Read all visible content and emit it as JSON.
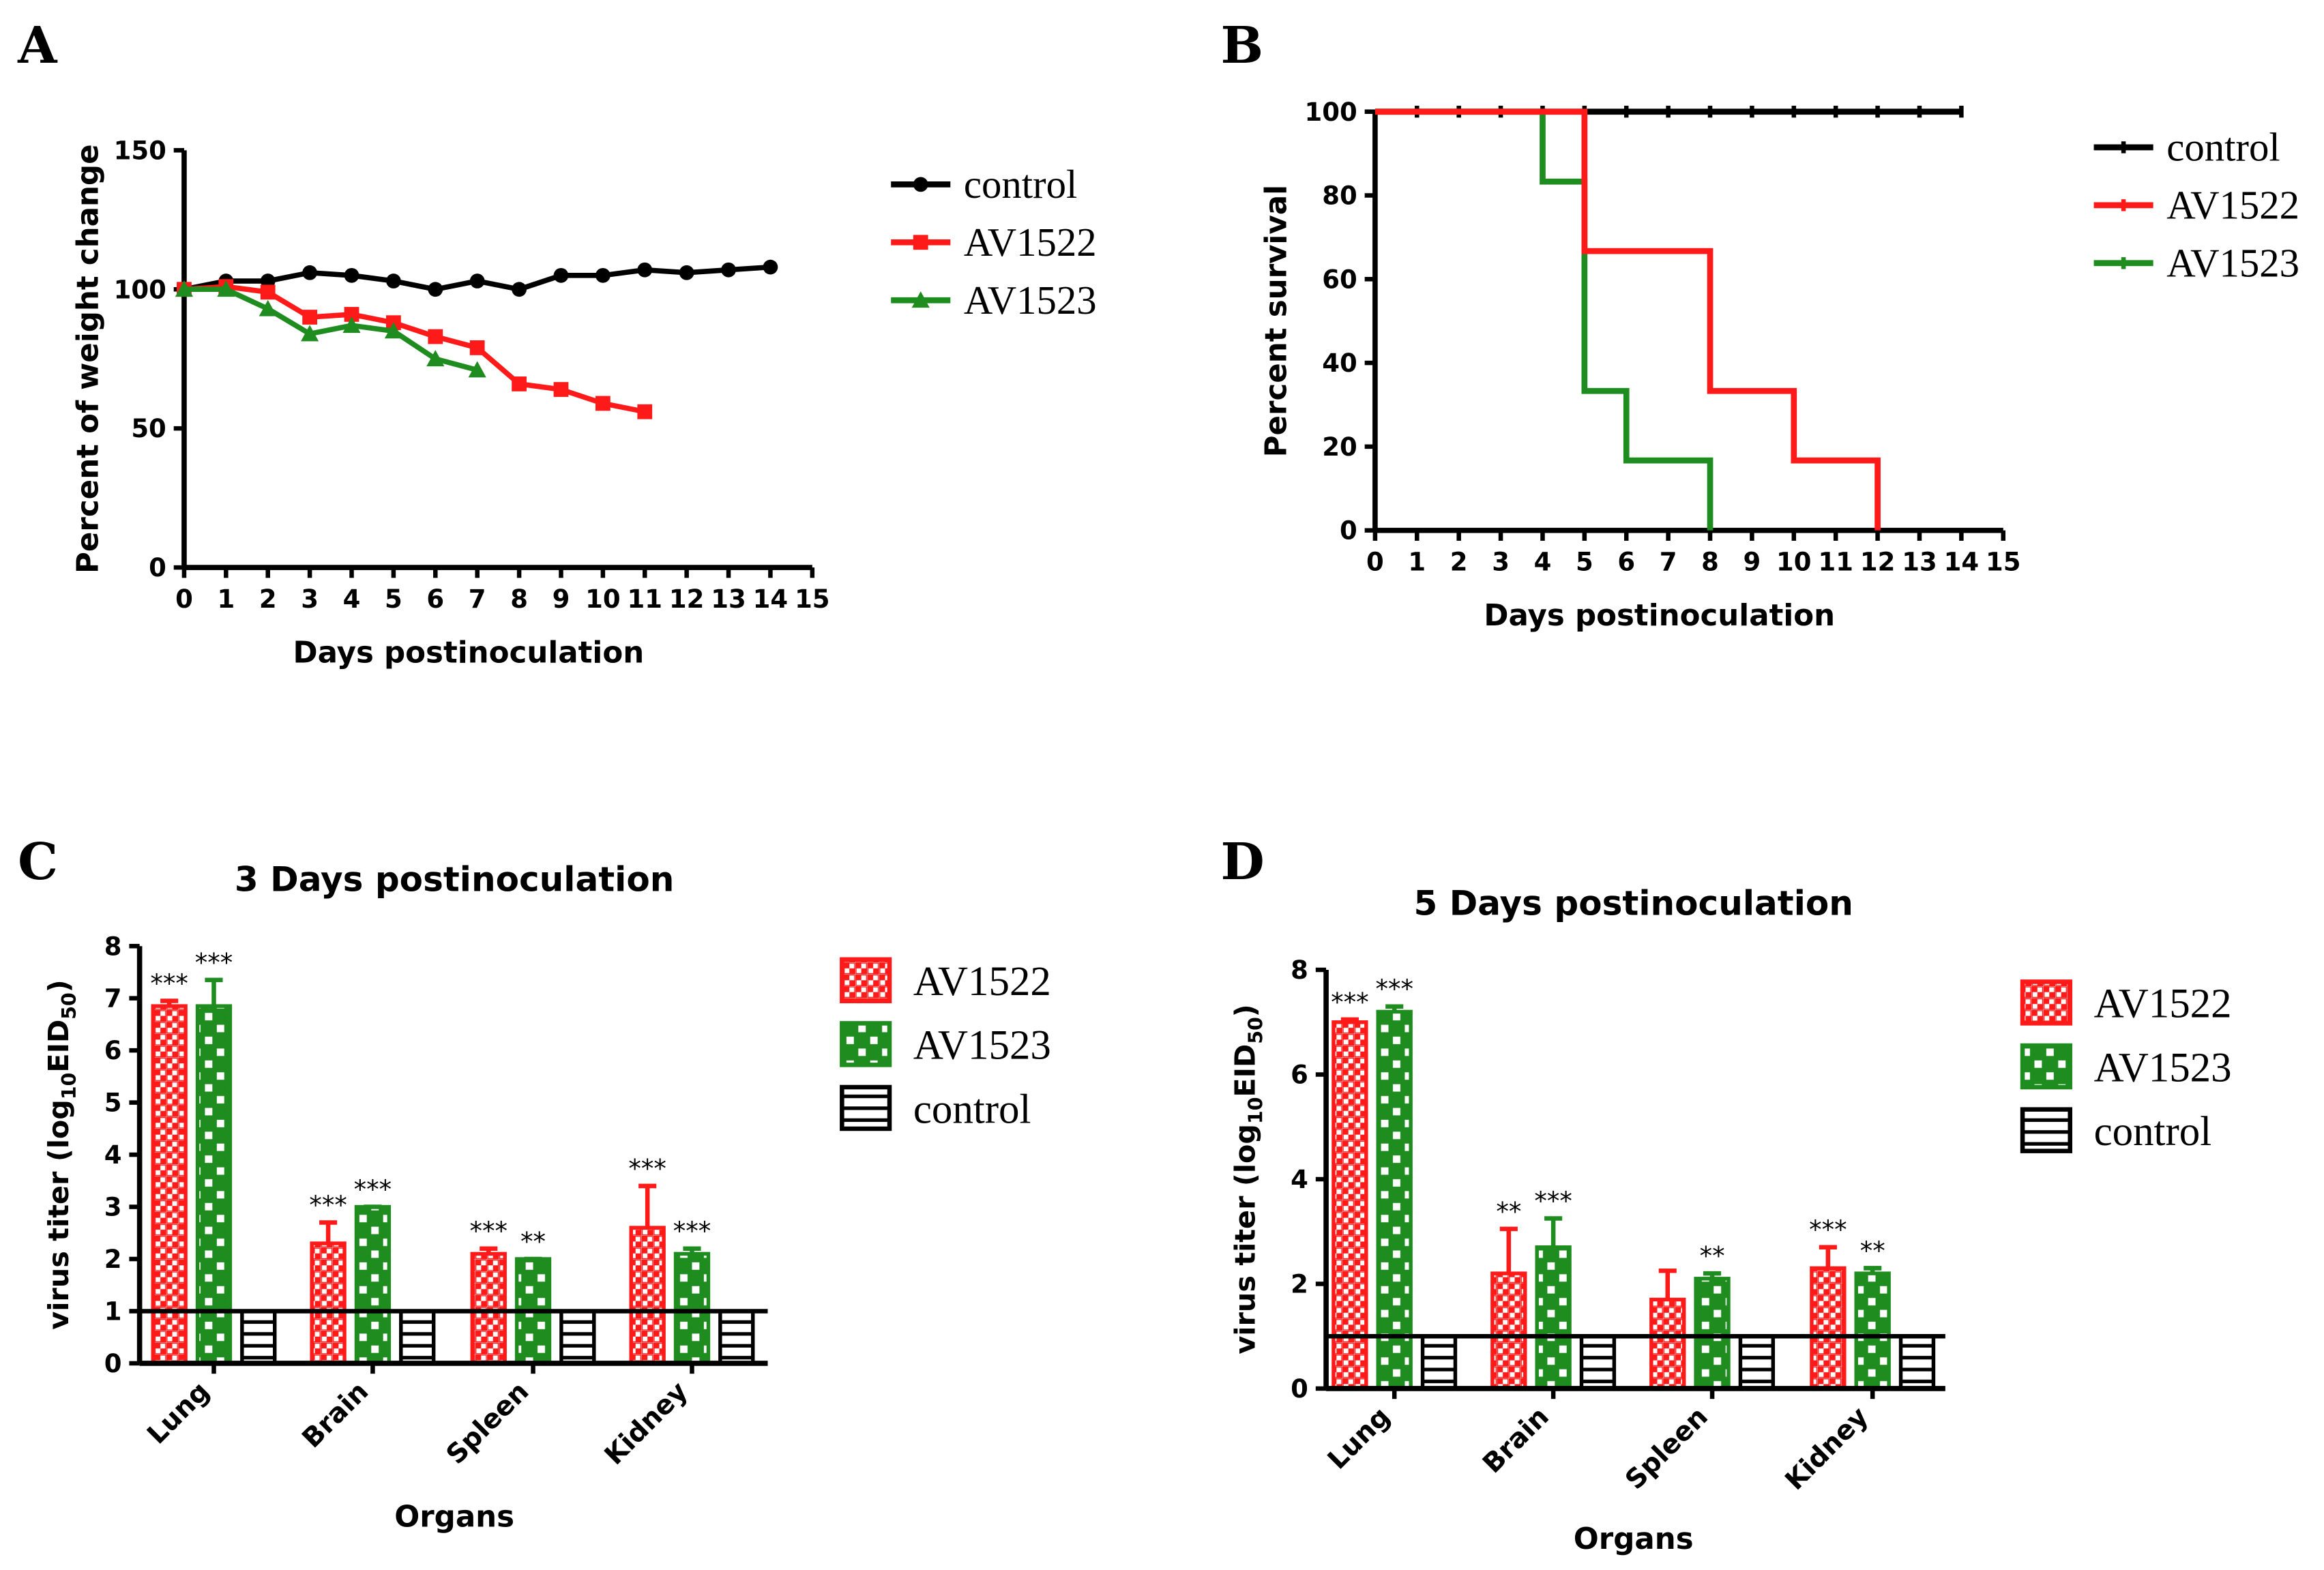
{
  "colors": {
    "control": "#000000",
    "av1522": "#ff1a1a",
    "av1523": "#1f8c1f"
  },
  "chart_data": [
    {
      "panel": "A",
      "type": "line",
      "title": "",
      "xlabel": "Days postinoculation",
      "ylabel": "Percent of weight change",
      "xlim": [
        0,
        15
      ],
      "ylim": [
        0,
        150
      ],
      "xticks": [
        "0",
        "1",
        "2",
        "3",
        "4",
        "5",
        "6",
        "7",
        "8",
        "9",
        "10",
        "11",
        "12",
        "13",
        "14",
        "15"
      ],
      "yticks": [
        "0",
        "50",
        "100",
        "150"
      ],
      "legend_position": "right",
      "series": [
        {
          "name": "control",
          "marker": "circle",
          "x": [
            0,
            1,
            2,
            3,
            4,
            5,
            6,
            7,
            8,
            9,
            10,
            11,
            12,
            13,
            14
          ],
          "y": [
            100,
            103,
            103,
            106,
            105,
            103,
            100,
            103,
            100,
            105,
            105,
            107,
            106,
            107,
            108
          ]
        },
        {
          "name": "AV1522",
          "marker": "square",
          "x": [
            0,
            1,
            2,
            3,
            4,
            5,
            6,
            7,
            8,
            9,
            10,
            11
          ],
          "y": [
            100,
            101,
            99,
            90,
            91,
            88,
            83,
            79,
            66,
            64,
            59,
            56
          ]
        },
        {
          "name": "AV1523",
          "marker": "triangle",
          "x": [
            0,
            1,
            2,
            3,
            4,
            5,
            6,
            7
          ],
          "y": [
            100,
            100,
            93,
            84,
            87,
            85,
            75,
            71
          ]
        }
      ]
    },
    {
      "panel": "B",
      "type": "line",
      "title": "",
      "xlabel": "Days postinoculation",
      "ylabel": "Percent survival",
      "xlim": [
        0,
        15
      ],
      "ylim": [
        0,
        100
      ],
      "xticks": [
        "0",
        "1",
        "2",
        "3",
        "4",
        "5",
        "6",
        "7",
        "8",
        "9",
        "10",
        "11",
        "12",
        "13",
        "14",
        "15"
      ],
      "yticks": [
        "0",
        "20",
        "40",
        "60",
        "80",
        "100"
      ],
      "legend_position": "right",
      "series": [
        {
          "name": "control",
          "step": true,
          "x": [
            0,
            14
          ],
          "y": [
            100,
            100
          ]
        },
        {
          "name": "AV1522",
          "step": true,
          "x": [
            0,
            5,
            8,
            10,
            12
          ],
          "y": [
            100,
            66.7,
            33.3,
            16.7,
            0
          ]
        },
        {
          "name": "AV1523",
          "step": true,
          "x": [
            0,
            4,
            5,
            6,
            8
          ],
          "y": [
            100,
            83.3,
            33.3,
            16.7,
            0
          ]
        }
      ]
    },
    {
      "panel": "C",
      "type": "bar",
      "title": "3 Days postinoculation",
      "xlabel": "Organs",
      "ylabel": "virus titer (log",
      "ylabel_sub": "10",
      "ylabel_main2": "EID",
      "ylabel_sub2": "50",
      "ylabel_end": ")",
      "ylim": [
        0,
        8
      ],
      "yticks": [
        "0",
        "1",
        "2",
        "3",
        "4",
        "5",
        "6",
        "7",
        "8"
      ],
      "categories": [
        "Lung",
        "Brain",
        "Spleen",
        "Kidney"
      ],
      "baseline": 1,
      "legend_position": "right",
      "series": [
        {
          "name": "AV1522",
          "values": [
            6.85,
            2.3,
            2.1,
            2.6
          ],
          "errors": [
            0.1,
            0.4,
            0.1,
            0.8
          ],
          "stars": [
            "***",
            "***",
            "***",
            "***"
          ]
        },
        {
          "name": "AV1523",
          "values": [
            6.85,
            3.0,
            2.0,
            2.1
          ],
          "errors": [
            0.5,
            0.0,
            0.0,
            0.1
          ],
          "stars": [
            "***",
            "***",
            "**",
            "***"
          ]
        },
        {
          "name": "control",
          "values": [
            1,
            1,
            1,
            1
          ],
          "errors": [
            0,
            0,
            0,
            0
          ],
          "stars": [
            "",
            "",
            "",
            ""
          ]
        }
      ]
    },
    {
      "panel": "D",
      "type": "bar",
      "title": "5 Days postinoculation",
      "xlabel": "Organs",
      "ylabel": "virus titer (log",
      "ylabel_sub": "10",
      "ylabel_main2": "EID",
      "ylabel_sub2": "50",
      "ylabel_end": ")",
      "ylim": [
        0,
        8
      ],
      "yticks": [
        "0",
        "2",
        "4",
        "6",
        "8"
      ],
      "categories": [
        "Lung",
        "Brain",
        "Spleen",
        "Kidney"
      ],
      "baseline": 1,
      "legend_position": "right",
      "series": [
        {
          "name": "AV1522",
          "values": [
            7.0,
            2.2,
            1.7,
            2.3
          ],
          "errors": [
            0.05,
            0.85,
            0.55,
            0.4
          ],
          "stars": [
            "***",
            "**",
            "",
            "***"
          ]
        },
        {
          "name": "AV1523",
          "values": [
            7.2,
            2.7,
            2.1,
            2.2
          ],
          "errors": [
            0.1,
            0.55,
            0.1,
            0.1
          ],
          "stars": [
            "***",
            "***",
            "**",
            "**"
          ]
        },
        {
          "name": "control",
          "values": [
            1,
            1,
            1,
            1
          ],
          "errors": [
            0,
            0,
            0,
            0
          ],
          "stars": [
            "",
            "",
            "",
            ""
          ]
        }
      ]
    }
  ]
}
